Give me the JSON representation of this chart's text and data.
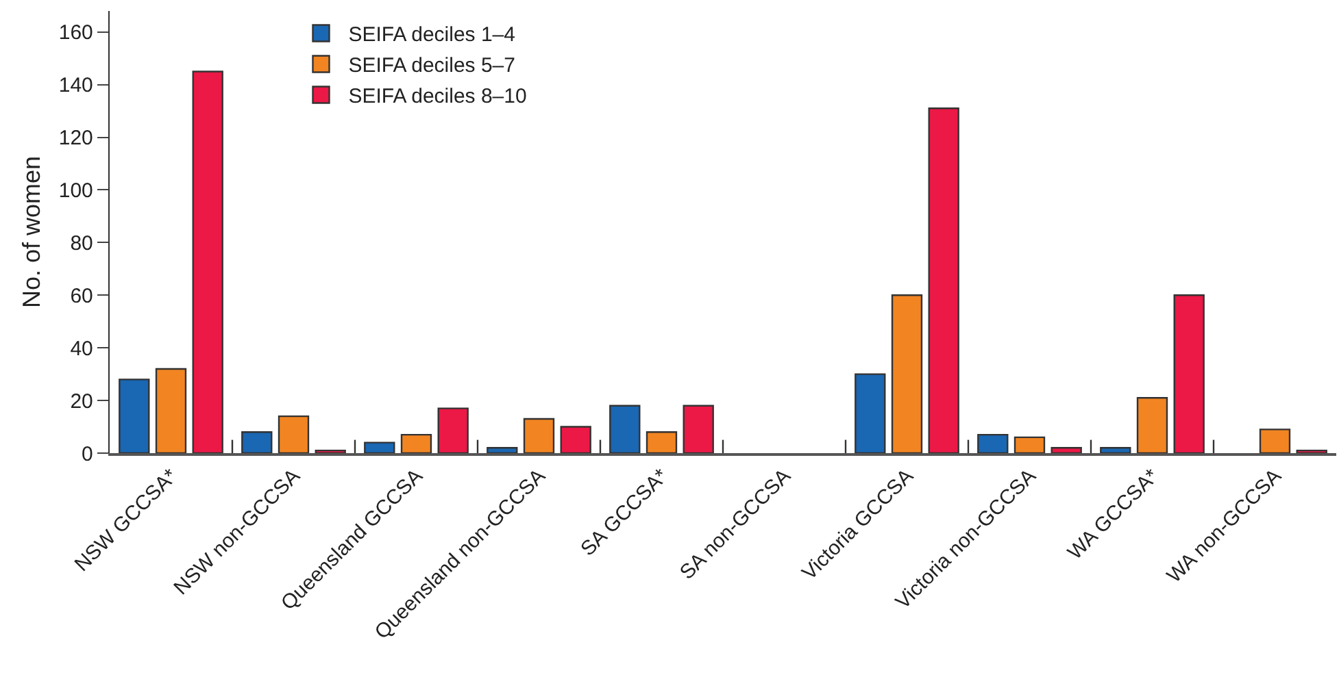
{
  "chart_data": {
    "type": "bar",
    "ylabel": "No. of women",
    "categories": [
      "NSW GCCSA*",
      "NSW non-GCCSA",
      "Queensland GCCSA",
      "Queensland non-GCCSA",
      "SA GCCSA*",
      "SA non-GCCSA",
      "Victoria GCCSA",
      "Victoria non-GCCSA",
      "WA GCCSA*",
      "WA non-GCCSA"
    ],
    "series": [
      {
        "name": "SEIFA deciles 1–4",
        "color": "#1a67b3",
        "values": [
          28,
          8,
          4,
          2,
          18,
          null,
          30,
          7,
          2,
          null
        ]
      },
      {
        "name": "SEIFA deciles 5–7",
        "color": "#f28522",
        "values": [
          32,
          14,
          7,
          13,
          8,
          null,
          60,
          6,
          21,
          9
        ]
      },
      {
        "name": "SEIFA deciles 8–10",
        "color": "#ec1846",
        "values": [
          145,
          1,
          17,
          10,
          18,
          null,
          131,
          2,
          60,
          1
        ]
      }
    ],
    "ylim": [
      0,
      168
    ],
    "yticks": [
      0,
      20,
      40,
      60,
      80,
      100,
      120,
      140,
      160
    ],
    "legend": "top left"
  }
}
